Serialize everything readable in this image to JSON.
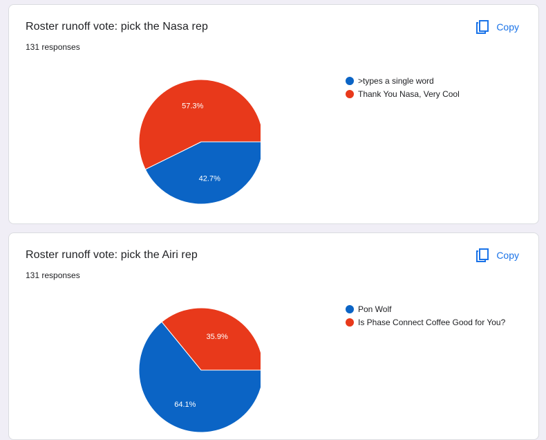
{
  "copy_label": "Copy",
  "cards": [
    {
      "title": "Roster runoff vote: pick the Nasa rep",
      "responses": "131 responses",
      "chart_data": {
        "type": "pie",
        "categories": [
          ">types a single word",
          "Thank You Nasa, Very Cool"
        ],
        "values": [
          42.7,
          57.3
        ],
        "labels": [
          "42.7%",
          "57.3%"
        ],
        "colors": [
          "#0b64c5",
          "#e8391b"
        ],
        "legend_position": "right"
      }
    },
    {
      "title": "Roster runoff vote: pick the Airi rep",
      "responses": "131 responses",
      "chart_data": {
        "type": "pie",
        "categories": [
          "Pon Wolf",
          "Is Phase Connect Coffee Good for You?"
        ],
        "values": [
          64.1,
          35.9
        ],
        "labels": [
          "64.1%",
          "35.9%"
        ],
        "colors": [
          "#0b64c5",
          "#e8391b"
        ],
        "legend_position": "right"
      }
    }
  ]
}
